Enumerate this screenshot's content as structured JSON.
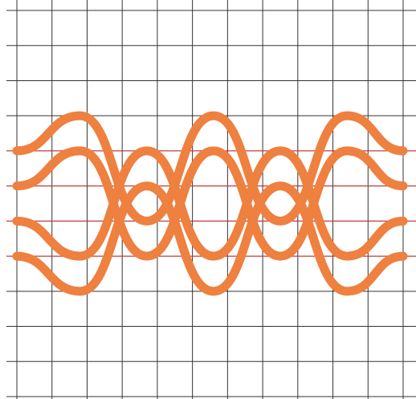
{
  "chart_data": {
    "type": "line",
    "x": [
      0,
      1.8,
      3.7,
      5.6,
      7.5,
      9.4,
      11
    ],
    "series": [
      {
        "color": "#ee8040",
        "values": [
          7,
          8,
          5,
          8,
          5,
          8,
          7
        ]
      },
      {
        "color": "#ee8040",
        "values": [
          6,
          7,
          4,
          7,
          4,
          7,
          6
        ]
      },
      {
        "color": "#ee8040",
        "values": [
          4,
          3,
          6,
          3,
          6,
          3,
          4
        ]
      },
      {
        "color": "#ee8040",
        "values": [
          5,
          4,
          7,
          4,
          7,
          4,
          5
        ]
      }
    ],
    "reference_lines": {
      "color": "#e03030",
      "values": [
        4,
        5,
        6,
        7
      ]
    },
    "xlim": [
      0,
      11
    ],
    "ylim": [
      0,
      11
    ],
    "xticks": [
      0,
      1,
      2,
      3,
      4,
      5,
      6,
      7,
      8,
      9,
      10,
      11
    ],
    "yticks": [
      0,
      1,
      2,
      3,
      4,
      5,
      6,
      7,
      8,
      9,
      10,
      11
    ],
    "grid": true
  }
}
